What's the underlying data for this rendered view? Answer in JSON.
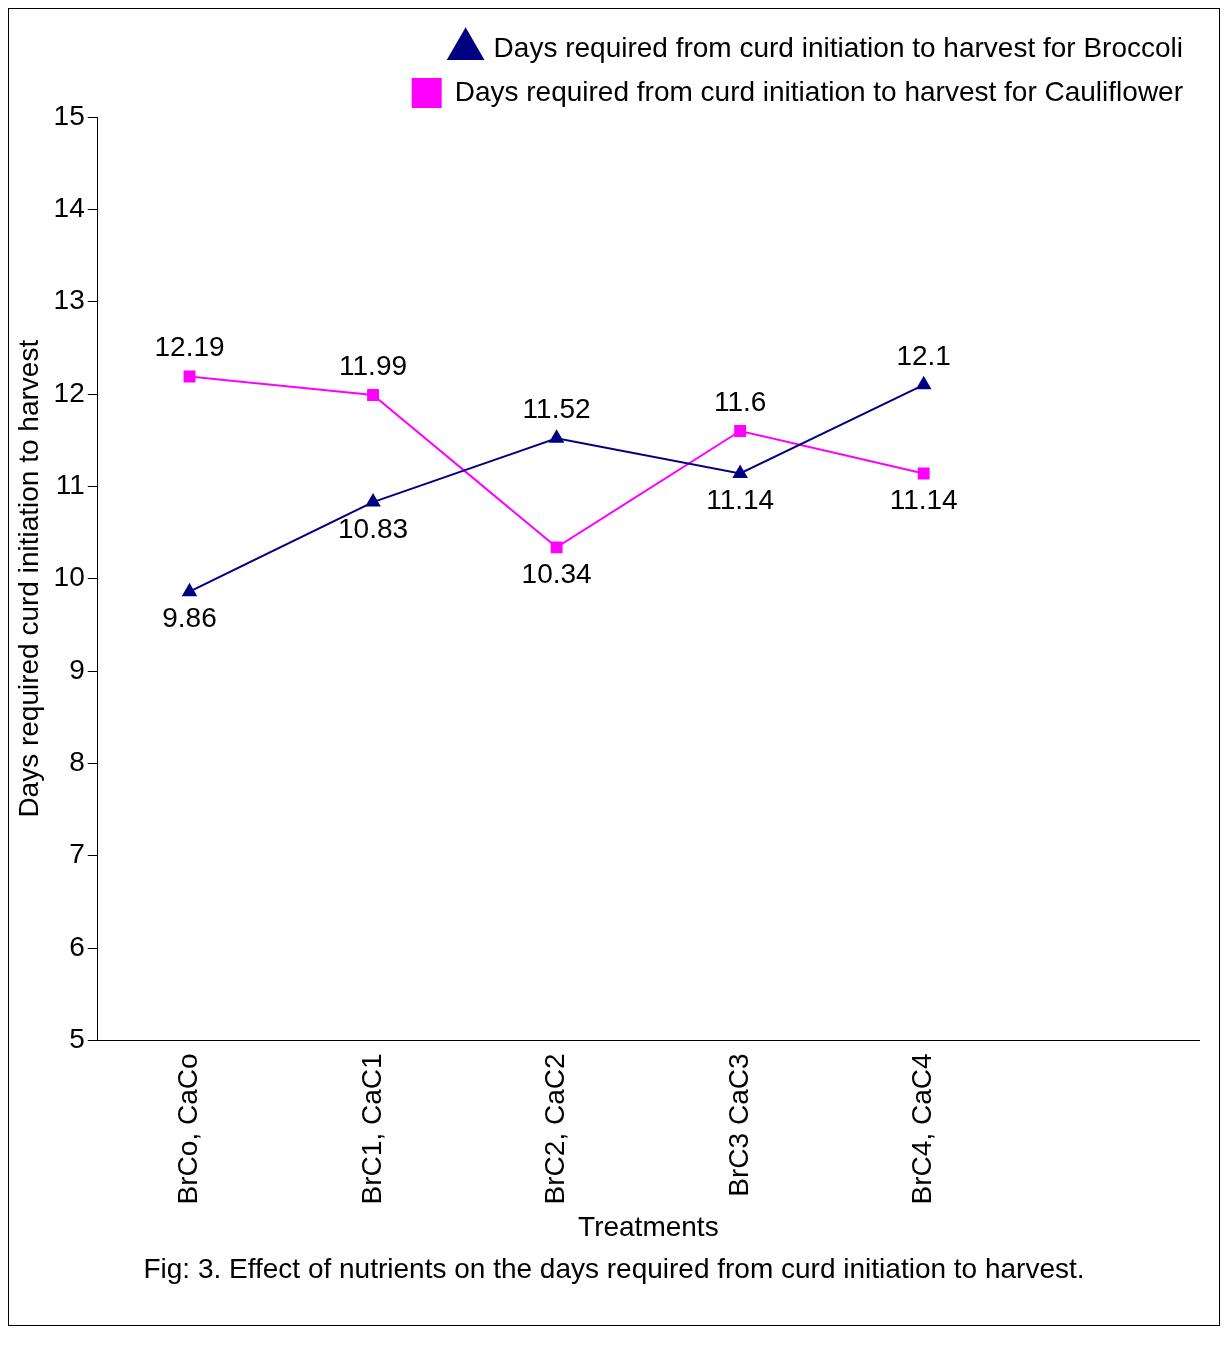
{
  "chart_data": {
    "type": "line",
    "xlabel": "Treatments",
    "ylabel": "Days required curd initiation to harvest",
    "categories": [
      "BrCo, CaCo",
      "BrC1, CaC1",
      "BrC2, CaC2",
      "BrC3 CaC3",
      "BrC4, CaC4",
      null
    ],
    "series": [
      {
        "name": "Days required from curd initiation to harvest for Broccoli",
        "color": "#000080",
        "marker": "triangle",
        "values": [
          9.86,
          10.83,
          11.52,
          11.14,
          12.1,
          null
        ]
      },
      {
        "name": "Days required from curd initiation to harvest for Cauliflower",
        "color": "#ff00ff",
        "marker": "square",
        "values": [
          12.19,
          11.99,
          10.34,
          11.6,
          11.14,
          null
        ]
      }
    ],
    "ylim": [
      5,
      15
    ],
    "yticks": [
      5,
      6,
      7,
      8,
      9,
      10,
      11,
      12,
      13,
      14,
      15
    ],
    "grid": false,
    "legend": "top right",
    "data_labels": true,
    "annotations": [
      "Fig: 3. Effect of nutrients on the days required from curd initiation to harvest."
    ]
  }
}
